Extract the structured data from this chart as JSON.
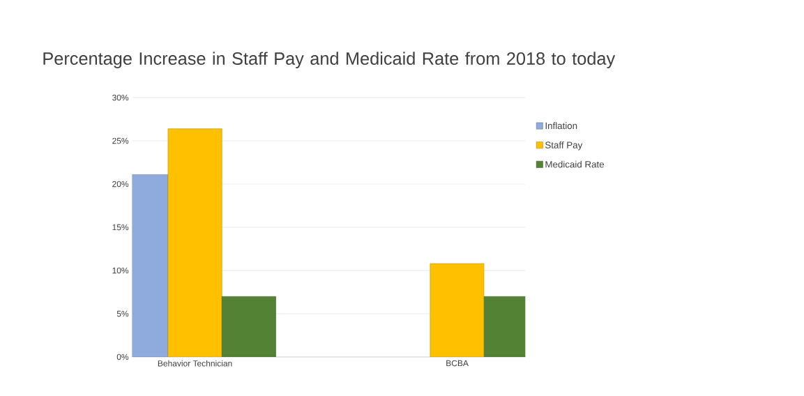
{
  "chart_data": {
    "type": "bar",
    "title": "Percentage Increase in Staff Pay and Medicaid Rate from 2018 to today",
    "categories": [
      "Behavior Technician",
      "BCBA"
    ],
    "series": [
      {
        "name": "Inflation",
        "color": "#8faadc",
        "values": [
          21.1,
          null
        ]
      },
      {
        "name": "Staff Pay",
        "color": "#ffc000",
        "values": [
          26.4,
          10.8
        ]
      },
      {
        "name": "Medicaid Rate",
        "color": "#548235",
        "values": [
          7.0,
          7.0
        ]
      }
    ],
    "ylim": [
      0,
      30
    ],
    "yticks": [
      {
        "value": 0,
        "label": "0%"
      },
      {
        "value": 5,
        "label": "5%"
      },
      {
        "value": 10,
        "label": "10%"
      },
      {
        "value": 15,
        "label": "15%"
      },
      {
        "value": 20,
        "label": "20%"
      },
      {
        "value": 25,
        "label": "25%"
      },
      {
        "value": 30,
        "label": "30%"
      }
    ],
    "grid": "y",
    "legend": "right"
  }
}
